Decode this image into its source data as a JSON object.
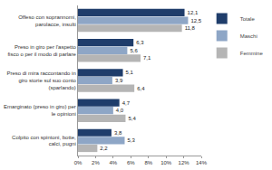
{
  "chart_data": {
    "type": "bar",
    "orientation": "horizontal",
    "categories": [
      "Offeso con soprannomi, parolacce, insulti",
      "Preso in giro per l'aspetto fisco o per il modo di parlare",
      "Preso di mira raccontando in giro storie sul suo conto (sparlando)",
      "Emarginato (preso in giro) per le opinioni",
      "Colpito con spintoni, botte, calci, pugni"
    ],
    "series": [
      {
        "name": "Totale",
        "color": "#1f3d6b",
        "values": [
          12.1,
          6.3,
          5.1,
          4.7,
          3.8
        ],
        "value_labels": [
          "12,1",
          "6,3",
          "5,1",
          "4,7",
          "3,8"
        ]
      },
      {
        "name": "Maschi",
        "color": "#8ea6c6",
        "values": [
          12.5,
          5.6,
          3.9,
          4.0,
          5.3
        ],
        "value_labels": [
          "12,5",
          "5,6",
          "3,9",
          "4,0",
          "5,3"
        ]
      },
      {
        "name": "Femmine",
        "color": "#b5b5b5",
        "values": [
          11.8,
          7.1,
          6.4,
          5.4,
          2.2
        ],
        "value_labels": [
          "11,8",
          "7,1",
          "6,4",
          "5,4",
          "2,2"
        ]
      }
    ],
    "xlim": [
      0,
      14
    ],
    "xticks": [
      {
        "value": 0,
        "label": "0%"
      },
      {
        "value": 2,
        "label": "2%"
      },
      {
        "value": 4,
        "label": "4%"
      },
      {
        "value": 6,
        "label": "6%"
      },
      {
        "value": 8,
        "label": "8%"
      },
      {
        "value": 10,
        "label": "10%"
      },
      {
        "value": 12,
        "label": "12%"
      },
      {
        "value": 14,
        "label": "14%"
      }
    ],
    "grid": false,
    "legend": "right",
    "data_labels": true
  }
}
